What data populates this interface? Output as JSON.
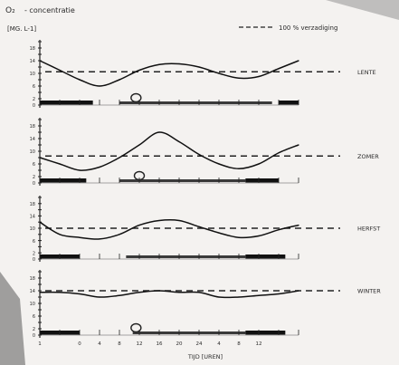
{
  "header": {
    "o2_label": "O₂",
    "concentration_label": "- concentratie",
    "unit_label": "[MG. L-1]",
    "legend_label": "100 % verzadiging"
  },
  "chart_data": [
    {
      "type": "line",
      "season": "LENTE",
      "ylim": [
        0,
        20
      ],
      "yticks": [
        "0",
        "2",
        "4",
        "6",
        "8",
        "10",
        "12",
        "14",
        "16",
        "18",
        "20"
      ],
      "saturation": 10.5,
      "x": [
        0,
        3,
        6,
        9,
        12,
        15,
        18,
        21,
        24,
        27,
        30,
        33,
        36,
        39
      ],
      "values": [
        14,
        11,
        8,
        6,
        8,
        11,
        12.8,
        13,
        12,
        10,
        8.5,
        9,
        11.5,
        14
      ],
      "dark_bars": [
        [
          0,
          8
        ],
        [
          36,
          39
        ]
      ],
      "light_bars": [
        [
          12,
          35
        ]
      ],
      "circle_at": 14.5
    },
    {
      "type": "line",
      "season": "ZOMER",
      "ylim": [
        0,
        20
      ],
      "yticks": [
        "0",
        "2",
        "4",
        "6",
        "8",
        "10",
        "12",
        "14",
        "16",
        "18",
        "20"
      ],
      "saturation": 8.5,
      "x": [
        0,
        3,
        6,
        9,
        12,
        15,
        18,
        21,
        24,
        27,
        30,
        33,
        36,
        39
      ],
      "values": [
        8,
        6,
        4,
        5,
        8,
        12,
        16,
        13,
        9,
        6,
        4.5,
        6,
        9.5,
        12
      ],
      "dark_bars": [
        [
          0,
          7
        ],
        [
          31,
          36
        ]
      ],
      "light_bars": [
        [
          12,
          31
        ]
      ],
      "circle_at": 15
    },
    {
      "type": "line",
      "season": "HERFST",
      "ylim": [
        0,
        20
      ],
      "yticks": [
        "0",
        "2",
        "4",
        "6",
        "8",
        "10",
        "12",
        "14",
        "16",
        "18",
        "20"
      ],
      "saturation": 10,
      "x": [
        0,
        3,
        6,
        9,
        12,
        15,
        18,
        21,
        24,
        27,
        30,
        33,
        36,
        39
      ],
      "values": [
        12,
        8,
        7,
        6.5,
        8,
        11,
        12.5,
        12.5,
        10.5,
        8.5,
        7,
        7.5,
        9.5,
        11
      ],
      "dark_bars": [
        [
          0,
          6
        ],
        [
          31,
          37
        ]
      ],
      "light_bars": [
        [
          13,
          31
        ]
      ],
      "circle_at": null
    },
    {
      "type": "line",
      "season": "WINTER",
      "ylim": [
        0,
        20
      ],
      "yticks": [
        "0",
        "2",
        "4",
        "6",
        "8",
        "10",
        "12",
        "14",
        "16",
        "18",
        "20"
      ],
      "saturation": 14,
      "x": [
        0,
        3,
        6,
        9,
        12,
        15,
        18,
        21,
        24,
        27,
        30,
        33,
        36,
        39
      ],
      "values": [
        13.5,
        13.5,
        13,
        12,
        12.5,
        13.5,
        14,
        13.5,
        13.5,
        12,
        12,
        12.5,
        13,
        14
      ],
      "dark_bars": [
        [
          0,
          6
        ],
        [
          31,
          37
        ]
      ],
      "light_bars": [
        [
          14,
          31
        ]
      ],
      "circle_at": 14.5,
      "xlabel": "TIJD [UREN]",
      "xticks": [
        {
          "x": 0,
          "label": "1"
        },
        {
          "x": 6,
          "label": "0"
        },
        {
          "x": 9,
          "label": "4"
        },
        {
          "x": 12,
          "label": "8"
        },
        {
          "x": 15,
          "label": "12"
        },
        {
          "x": 18,
          "label": "16"
        },
        {
          "x": 21,
          "label": "20"
        },
        {
          "x": 24,
          "label": "24"
        },
        {
          "x": 27,
          "label": "4"
        },
        {
          "x": 30,
          "label": "8"
        },
        {
          "x": 33,
          "label": "12"
        }
      ]
    }
  ]
}
